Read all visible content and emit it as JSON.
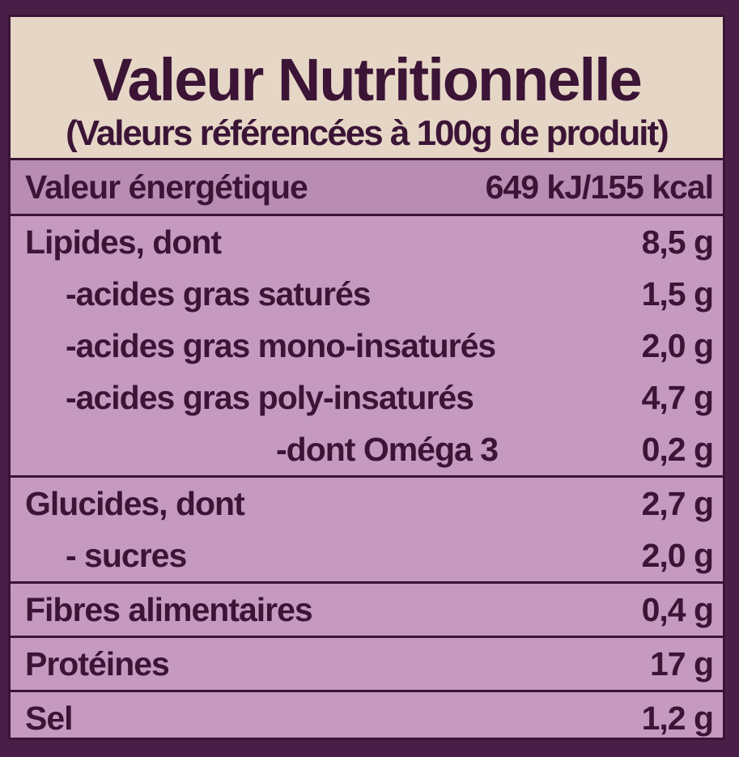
{
  "header": {
    "title": "Valeur Nutritionnelle",
    "subtitle": "(Valeurs référencées à 100g de produit)"
  },
  "energy": {
    "label": "Valeur énergétique",
    "value": "649 kJ/155 kcal"
  },
  "sections": [
    {
      "rows": [
        {
          "label": "Lipides, dont",
          "value": "8,5 g"
        },
        {
          "label": "-acides gras saturés",
          "value": "1,5 g"
        },
        {
          "label": "-acides gras mono-insaturés",
          "value": "2,0 g"
        },
        {
          "label": "-acides gras poly-insaturés",
          "value": "4,7 g"
        },
        {
          "label": "-dont Oméga 3",
          "value": "0,2 g"
        }
      ]
    },
    {
      "rows": [
        {
          "label": "Glucides, dont",
          "value": "2,7 g"
        },
        {
          "label": "- sucres",
          "value": "2,0 g"
        }
      ]
    },
    {
      "rows": [
        {
          "label": "Fibres alimentaires",
          "value": "0,4 g"
        }
      ]
    },
    {
      "rows": [
        {
          "label": "Protéines",
          "value": "17 g"
        }
      ]
    },
    {
      "rows": [
        {
          "label": "Sel",
          "value": "1,2 g"
        }
      ]
    }
  ]
}
